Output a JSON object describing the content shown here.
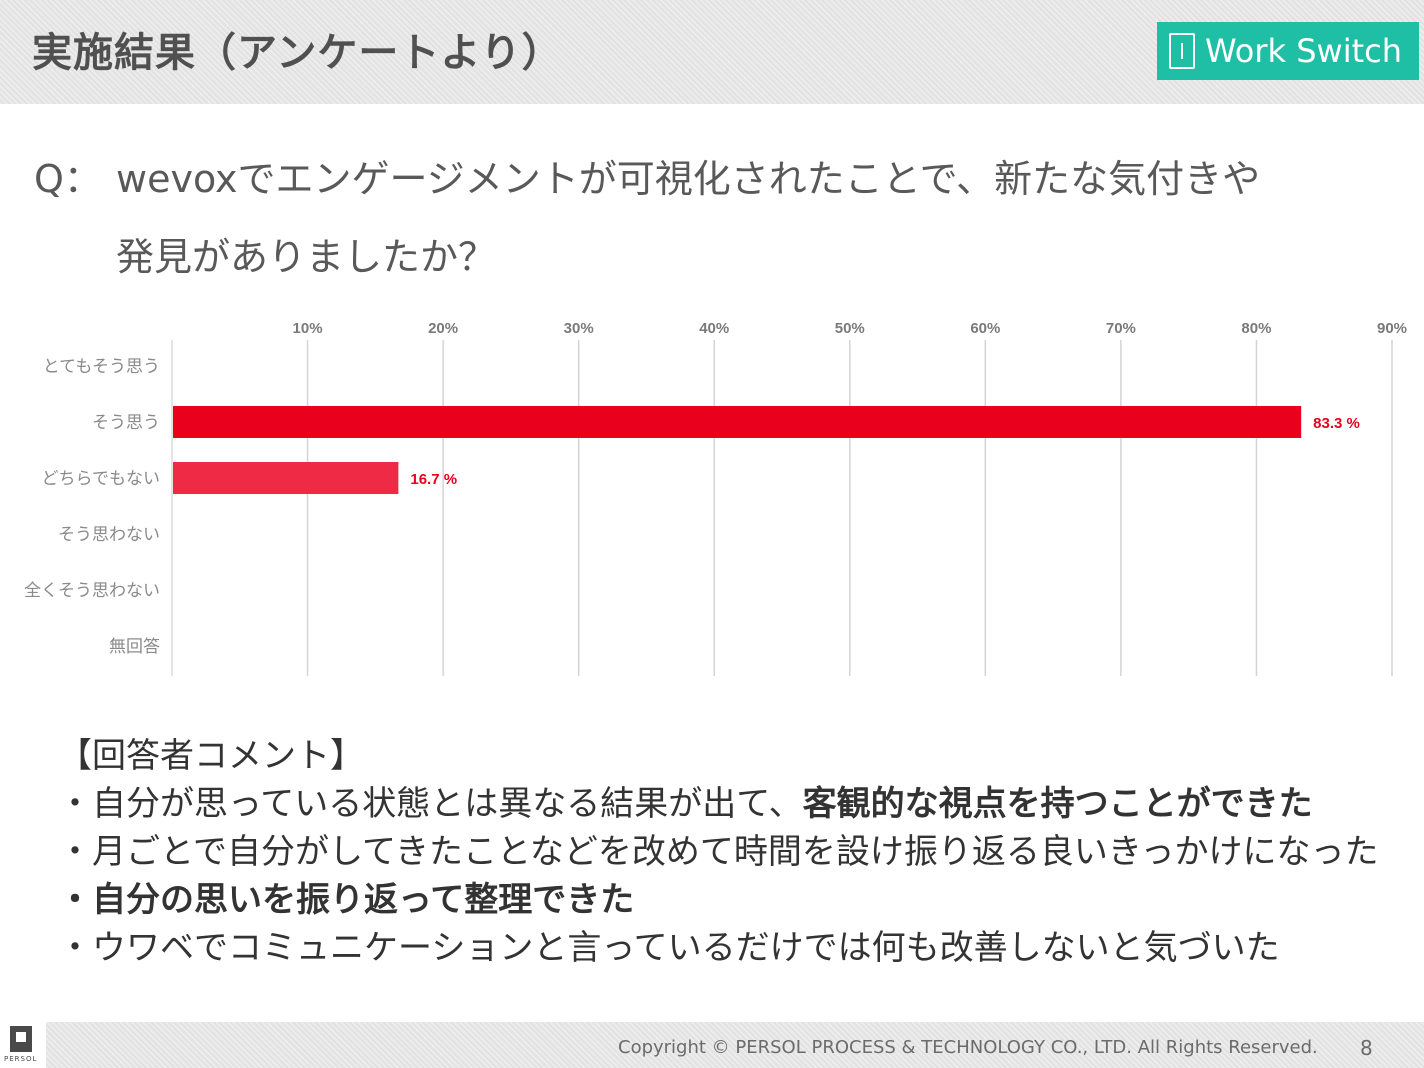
{
  "header": {
    "title": "実施結果（アンケートより）",
    "brand": "Work Switch",
    "brand_color": "#1fbfa6"
  },
  "question": {
    "label": "Q：",
    "line1": "wevoxでエンゲージメントが可視化されたことで、新たな気付きや",
    "line2": "発見がありましたか？"
  },
  "chart_data": {
    "type": "bar",
    "orientation": "horizontal",
    "categories": [
      "とてもそう思う",
      "そう思う",
      "どちらでもない",
      "そう思わない",
      "全くそう思わない",
      "無回答"
    ],
    "values": [
      0,
      83.3,
      16.7,
      0,
      0,
      0
    ],
    "data_labels": [
      "",
      "83.3 %",
      "16.7 %",
      "",
      "",
      ""
    ],
    "xlim": [
      0,
      90
    ],
    "ticks": [
      10,
      20,
      30,
      40,
      50,
      60,
      70,
      80,
      90
    ],
    "tick_labels": [
      "10%",
      "20%",
      "30%",
      "40%",
      "50%",
      "60%",
      "70%",
      "80%",
      "90%"
    ],
    "grid": true,
    "tick_position": "top",
    "bar_colors": [
      "#e8001c",
      "#e8001c",
      "#ef2a44",
      "#e8001c",
      "#e8001c",
      "#e8001c"
    ],
    "label_color": "#e8001c"
  },
  "comments": {
    "heading": "【回答者コメント】",
    "items": [
      {
        "plain": "・自分が思っている状態とは異なる結果が出て、",
        "bold": "客観的な視点を持つことができた"
      },
      {
        "plain": "・月ごとで自分がしてきたことなどを改めて時間を設け振り返る良いきっかけになった",
        "bold": ""
      },
      {
        "plain": "",
        "bold": "・自分の思いを振り返って整理できた"
      },
      {
        "plain": "・ウワベでコミュニケーションと言っているだけでは何も改善しないと気づいた",
        "bold": ""
      }
    ]
  },
  "footer": {
    "logo_word": "PERSOL",
    "copyright": "Copyright © PERSOL PROCESS & TECHNOLOGY CO., LTD. All Rights Reserved.",
    "page_number": "8"
  }
}
